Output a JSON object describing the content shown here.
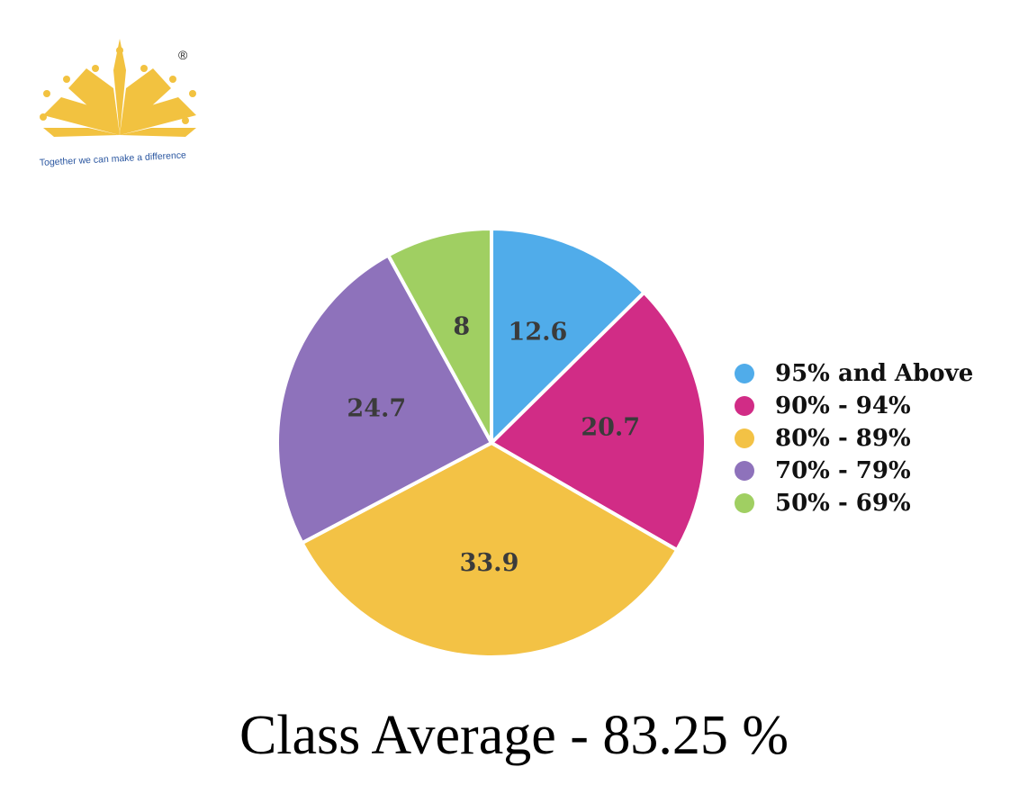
{
  "logo": {
    "tagline": "Together we can make a difference",
    "registered_mark": "®",
    "color": "#f2c240"
  },
  "chart_data": {
    "type": "pie",
    "categories": [
      "95% and Above",
      "90% - 94%",
      "80% - 89%",
      "70% - 79%",
      "50% - 69%"
    ],
    "values": [
      12.6,
      20.7,
      33.9,
      24.7,
      8
    ],
    "colors": [
      "#50acea",
      "#d12c86",
      "#f3c245",
      "#8e72bb",
      "#a0cf62"
    ],
    "legend_position": "right",
    "data_labels": true
  },
  "footer": {
    "class_average": "Class Average - 83.25 %"
  }
}
